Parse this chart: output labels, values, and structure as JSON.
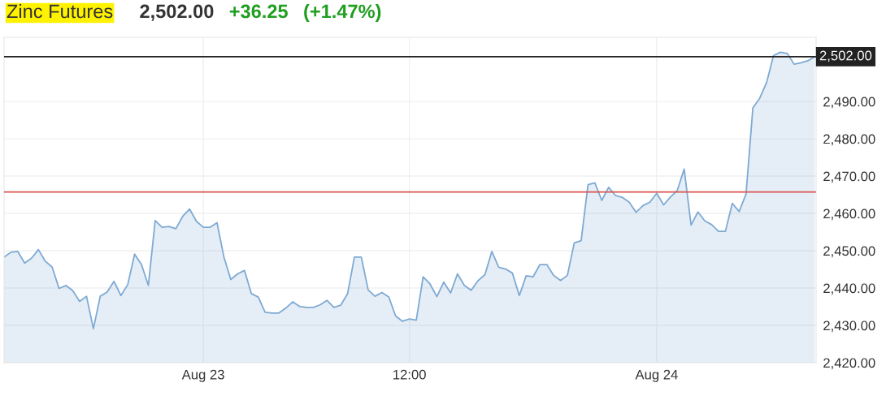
{
  "chart_data": {
    "type": "area",
    "title": "Zinc Futures",
    "annotations": [
      "2,502.00",
      "+36.25",
      "(+1.47%)"
    ],
    "categories": [
      null,
      null,
      null,
      null,
      null,
      null,
      null,
      null,
      null,
      null,
      null,
      null,
      null,
      null,
      null,
      null,
      null,
      null,
      null,
      null,
      null,
      null,
      null,
      null,
      null,
      null,
      null,
      null,
      null,
      "Aug 23",
      null,
      null,
      null,
      null,
      null,
      null,
      null,
      null,
      null,
      null,
      null,
      null,
      null,
      null,
      null,
      null,
      null,
      null,
      null,
      null,
      null,
      null,
      null,
      null,
      null,
      null,
      null,
      null,
      null,
      "12:00",
      null,
      null,
      null,
      null,
      null,
      null,
      null,
      null,
      null,
      null,
      null,
      null,
      null,
      null,
      null,
      null,
      null,
      null,
      null,
      null,
      null,
      null,
      null,
      null,
      null,
      null,
      null,
      null,
      null,
      null,
      null,
      null,
      null,
      null,
      null,
      "Aug 24",
      null,
      null,
      null,
      null,
      null,
      null,
      null,
      null,
      null,
      null,
      null,
      null,
      null,
      null,
      null,
      null,
      null,
      null,
      null,
      null,
      null,
      null,
      null
    ],
    "series": [
      {
        "color": "#7eaad3",
        "values": [
          2448.3,
          2449.6,
          2449.8,
          2446.7,
          2448.0,
          2450.3,
          2447.2,
          2445.6,
          2439.9,
          2440.7,
          2439.3,
          2436.4,
          2437.8,
          2429.1,
          2437.8,
          2438.9,
          2441.8,
          2438.0,
          2440.9,
          2449.1,
          2446.3,
          2440.7,
          2458.1,
          2456.3,
          2456.5,
          2455.9,
          2459.2,
          2461.2,
          2457.9,
          2456.3,
          2456.3,
          2457.5,
          2448.3,
          2442.3,
          2443.8,
          2444.7,
          2438.5,
          2437.6,
          2433.5,
          2433.3,
          2433.3,
          2434.6,
          2436.3,
          2435.1,
          2434.8,
          2434.8,
          2435.5,
          2436.7,
          2434.8,
          2435.4,
          2438.5,
          2448.3,
          2448.3,
          2439.5,
          2437.8,
          2438.8,
          2437.6,
          2432.5,
          2431.1,
          2431.7,
          2431.4,
          2443.0,
          2441.1,
          2437.7,
          2441.6,
          2438.7,
          2443.8,
          2440.7,
          2439.4,
          2442.0,
          2443.6,
          2449.8,
          2445.6,
          2445.1,
          2444.0,
          2438.0,
          2443.3,
          2443.0,
          2446.3,
          2446.3,
          2443.4,
          2442.0,
          2443.4,
          2452.1,
          2452.7,
          2467.7,
          2468.2,
          2463.5,
          2467.0,
          2464.8,
          2464.3,
          2463.0,
          2460.3,
          2462.1,
          2463.0,
          2465.4,
          2462.3,
          2464.4,
          2466.2,
          2471.9,
          2456.9,
          2460.4,
          2458.0,
          2457.0,
          2455.2,
          2455.2,
          2462.7,
          2460.5,
          2465.2,
          2488.3,
          2490.9,
          2495.1,
          2502.3,
          2503.2,
          2502.9,
          2500.0,
          2500.4,
          2500.9,
          2502.0
        ]
      }
    ],
    "ylim": [
      2420,
      2507.2
    ],
    "yticks": [
      {
        "value": 2420,
        "label": "2,420.00"
      },
      {
        "value": 2430,
        "label": "2,430.00"
      },
      {
        "value": 2440,
        "label": "2,440.00"
      },
      {
        "value": 2450,
        "label": "2,450.00"
      },
      {
        "value": 2460,
        "label": "2,460.00"
      },
      {
        "value": 2470,
        "label": "2,470.00"
      },
      {
        "value": 2480,
        "label": "2,480.00"
      },
      {
        "value": 2490,
        "label": "2,490.00"
      }
    ],
    "ref_lines": [
      {
        "axis": "y",
        "value": 2502.0,
        "label": "2,502.00",
        "color": "#222222"
      },
      {
        "axis": "y",
        "value": 2465.75,
        "color": "#d9534f"
      }
    ],
    "grid": true
  }
}
